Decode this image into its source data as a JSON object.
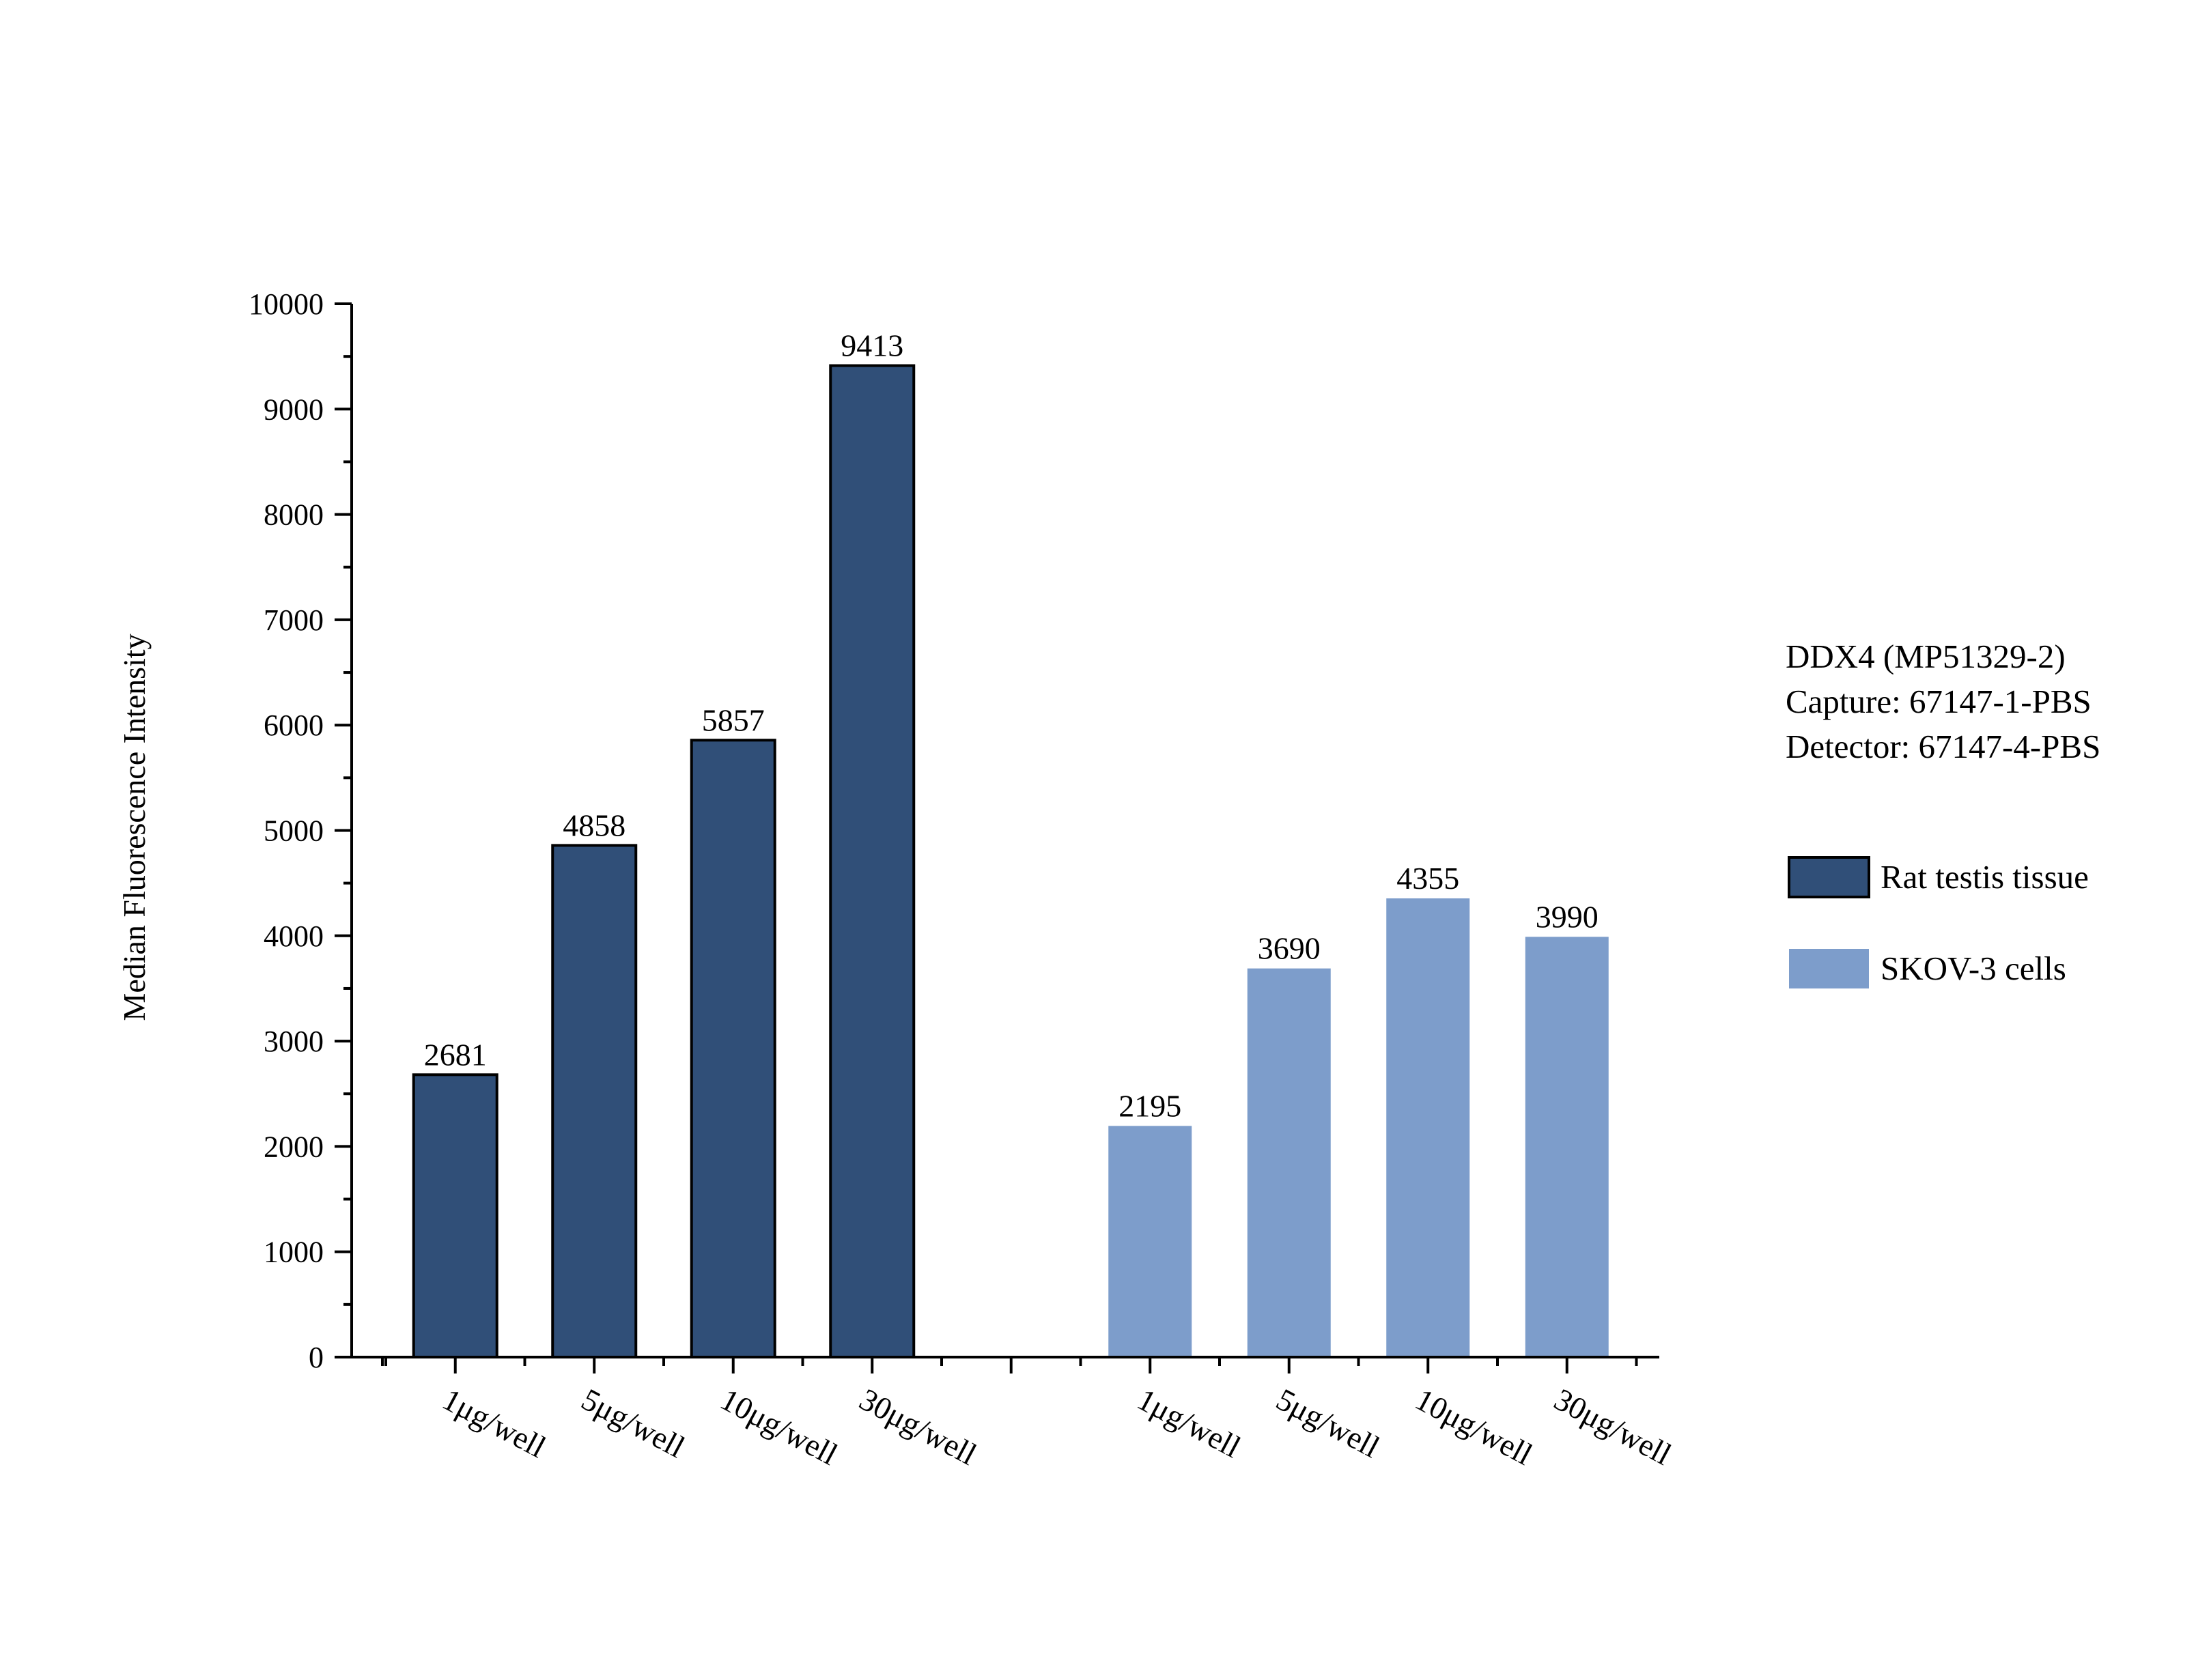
{
  "chart_data": {
    "type": "bar",
    "title": "",
    "xlabel": "",
    "ylabel": "Median Fluorescence Intensity",
    "ylim": [
      0,
      10000
    ],
    "yticks": [
      0,
      1000,
      2000,
      3000,
      4000,
      5000,
      6000,
      7000,
      8000,
      9000,
      10000
    ],
    "grid": false,
    "legend_position": "right",
    "colors": {
      "Rat testis tissue": "#304f78",
      "SKOV-3 cells": "#7d9dcb"
    },
    "series": [
      {
        "name": "Rat testis tissue",
        "categories": [
          "1μg/well",
          "5μg/well",
          "10μg/well",
          "30μg/well"
        ],
        "values": [
          2681,
          4858,
          5857,
          9413
        ]
      },
      {
        "name": "SKOV-3 cells",
        "categories": [
          "1μg/well",
          "5μg/well",
          "10μg/well",
          "30μg/well"
        ],
        "values": [
          2195,
          3690,
          4355,
          3990
        ]
      }
    ]
  },
  "annotation": {
    "lines": [
      "DDX4 (MP51329-2)",
      "Capture: 67147-1-PBS",
      "Detector: 67147-4-PBS"
    ]
  }
}
